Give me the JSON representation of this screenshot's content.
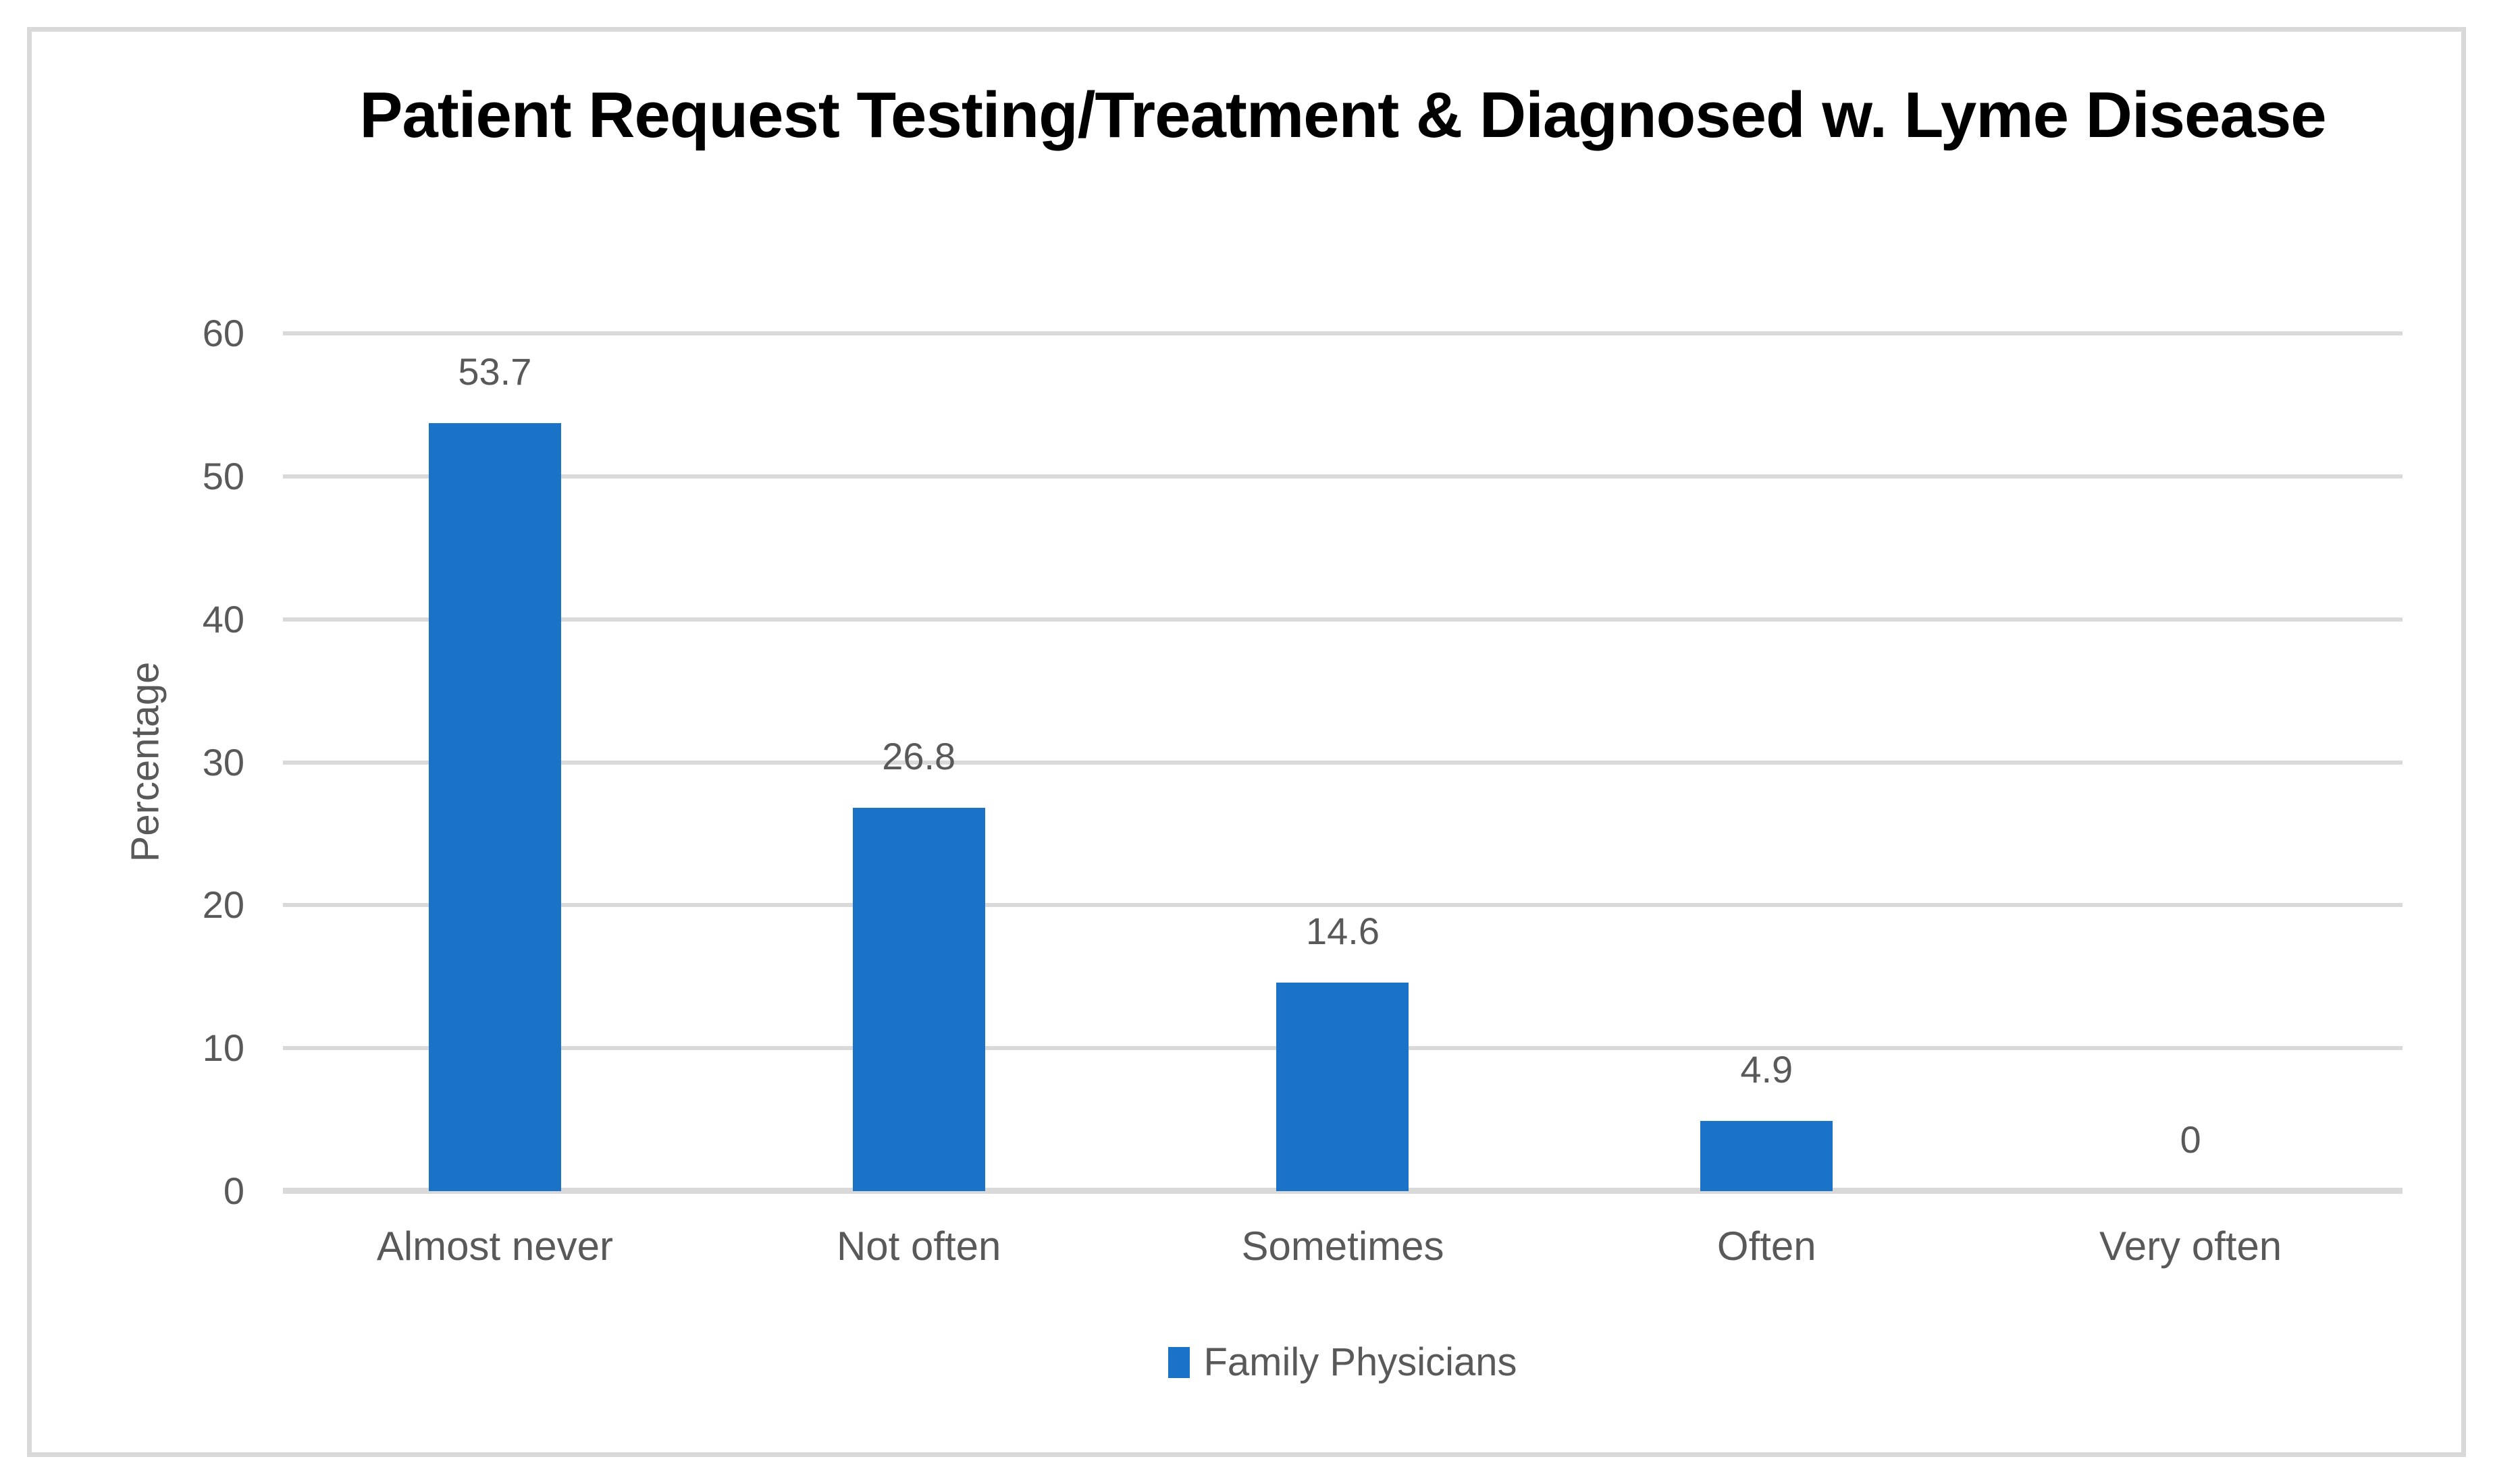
{
  "title": "Patient Request Testing/Treatment & Diagnosed w. Lyme Disease",
  "chart_data": {
    "type": "bar",
    "title": "Patient Request Testing/Treatment & Diagnosed w. Lyme Disease",
    "categories": [
      "Almost never",
      "Not often",
      "Sometimes",
      "Often",
      "Very often"
    ],
    "series": [
      {
        "name": "Family Physicians",
        "values": [
          53.7,
          26.8,
          14.6,
          4.9,
          0
        ]
      }
    ],
    "data_labels": [
      "53.7",
      "26.8",
      "14.6",
      "4.9",
      "0"
    ],
    "xlabel": "",
    "ylabel": "Percentage",
    "ylim": [
      0,
      60
    ],
    "ytick_step": 10,
    "grid": true,
    "legend_position": "bottom"
  },
  "legend": {
    "label": "Family Physicians"
  },
  "colors": {
    "bar": "#1B73C7",
    "grid": "#D9D9D9",
    "axis_text": "#595959",
    "title_text": "#000000",
    "frame": "#D9D9D9"
  }
}
